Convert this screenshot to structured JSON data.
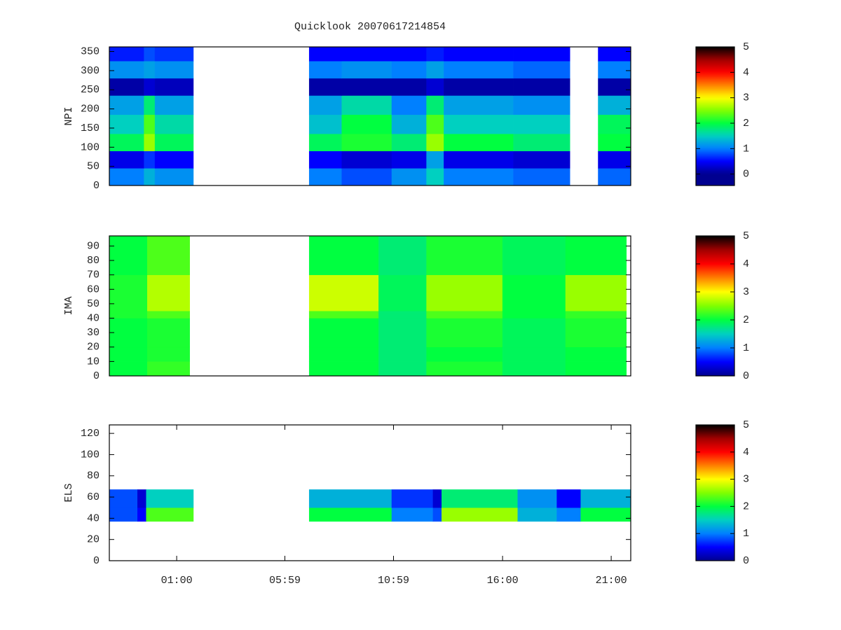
{
  "chart_data": [
    {
      "type": "heatmap",
      "title": "Quicklook 20070617214854",
      "ylabel": "NPI",
      "xlim": [
        -2.1,
        21.9
      ],
      "ylim": [
        0,
        362
      ],
      "yticks": [
        0,
        50,
        100,
        150,
        200,
        250,
        300,
        350
      ],
      "x_edges": [
        -2.1,
        -0.5,
        0.0,
        1.77,
        7.1,
        8.6,
        10.9,
        12.5,
        13.3,
        16.5,
        19.1,
        20.4,
        21.9
      ],
      "y_edges": [
        0,
        45,
        90,
        135,
        185,
        235,
        280,
        325,
        362
      ],
      "z": [
        [
          1.0,
          1.3,
          1.1,
          null,
          1.0,
          0.8,
          1.1,
          1.5,
          1.0,
          0.9,
          null,
          0.9
        ],
        [
          0.4,
          0.7,
          0.5,
          null,
          0.5,
          0.3,
          0.4,
          1.2,
          0.4,
          0.3,
          null,
          0.4
        ],
        [
          1.9,
          2.6,
          1.9,
          null,
          1.9,
          2.1,
          1.8,
          2.6,
          2.0,
          1.8,
          null,
          2.0
        ],
        [
          1.5,
          2.3,
          1.6,
          null,
          1.4,
          2.0,
          1.3,
          2.3,
          1.5,
          1.5,
          null,
          1.9
        ],
        [
          1.2,
          1.8,
          1.2,
          null,
          1.2,
          1.6,
          1.0,
          1.8,
          1.2,
          1.1,
          null,
          1.3
        ],
        [
          0.1,
          0.3,
          0.2,
          null,
          0.1,
          0.1,
          0.1,
          0.3,
          0.1,
          0.1,
          null,
          0.1
        ],
        [
          1.1,
          1.2,
          1.1,
          null,
          1.0,
          1.1,
          1.0,
          1.2,
          1.0,
          0.9,
          null,
          1.0
        ],
        [
          0.6,
          0.8,
          0.7,
          null,
          0.5,
          0.5,
          0.5,
          0.6,
          0.5,
          0.5,
          null,
          0.5
        ]
      ],
      "clim": [
        -0.45,
        5
      ],
      "cticks": [
        0,
        1,
        2,
        3,
        4,
        5
      ],
      "colormap": [
        "#000090",
        "#0000ff",
        "#0080ff",
        "#00d0c0",
        "#00ff40",
        "#80ff00",
        "#ffff00",
        "#ff8000",
        "#ff0000",
        "#a00000",
        "#000000"
      ]
    },
    {
      "type": "heatmap",
      "ylabel": "IMA",
      "xlim": [
        -2.1,
        21.9
      ],
      "ylim": [
        0,
        97
      ],
      "yticks": [
        0,
        10,
        20,
        30,
        40,
        50,
        60,
        70,
        80,
        90
      ],
      "x_edges": [
        -2.1,
        -0.35,
        1.6,
        7.1,
        10.3,
        12.5,
        16.0,
        18.9,
        21.7
      ],
      "y_edges": [
        0,
        10,
        20,
        40,
        45,
        70,
        97
      ],
      "z": [
        [
          2.0,
          2.2,
          null,
          2.0,
          1.8,
          2.1,
          1.9,
          2.0
        ],
        [
          2.0,
          2.1,
          null,
          2.0,
          1.8,
          2.0,
          1.9,
          2.0
        ],
        [
          2.0,
          2.1,
          null,
          2.0,
          1.8,
          2.1,
          1.9,
          2.1
        ],
        [
          2.1,
          2.3,
          null,
          2.3,
          1.8,
          2.3,
          2.0,
          2.2
        ],
        [
          2.1,
          2.7,
          null,
          2.8,
          1.9,
          2.6,
          2.0,
          2.6
        ],
        [
          2.0,
          2.3,
          null,
          2.0,
          1.8,
          2.1,
          1.9,
          2.0
        ]
      ],
      "clim": [
        0,
        5
      ],
      "cticks": [
        0,
        1,
        2,
        3,
        4,
        5
      ],
      "colormap": [
        "#000090",
        "#0000ff",
        "#0080ff",
        "#00d0c0",
        "#00ff40",
        "#80ff00",
        "#ffff00",
        "#ff8000",
        "#ff0000",
        "#a00000",
        "#000000"
      ]
    },
    {
      "type": "heatmap",
      "ylabel": "ELS",
      "xlim": [
        -2.1,
        21.9
      ],
      "ylim": [
        0,
        128
      ],
      "yticks": [
        0,
        20,
        40,
        60,
        80,
        100,
        120
      ],
      "xticks": [
        {
          "value": 1,
          "label": "01:00"
        },
        {
          "value": 5.98,
          "label": "05:59"
        },
        {
          "value": 10.98,
          "label": "10:59"
        },
        {
          "value": 16,
          "label": "16:00"
        },
        {
          "value": 21,
          "label": "21:00"
        }
      ],
      "x_edges": [
        -2.1,
        -0.8,
        -0.4,
        1.77,
        7.1,
        10.9,
        12.8,
        13.2,
        16.7,
        18.5,
        19.6,
        21.9
      ],
      "y_edges": [
        37,
        50,
        67
      ],
      "z": [
        [
          0.8,
          0.5,
          2.3,
          null,
          2.0,
          1.0,
          0.8,
          2.6,
          1.3,
          1.0,
          2.0
        ],
        [
          0.8,
          0.3,
          1.5,
          null,
          1.3,
          0.7,
          0.3,
          1.8,
          1.1,
          0.5,
          1.3
        ]
      ],
      "clim": [
        0,
        5
      ],
      "cticks": [
        0,
        1,
        2,
        3,
        4,
        5
      ],
      "colormap": [
        "#000090",
        "#0000ff",
        "#0080ff",
        "#00d0c0",
        "#00ff40",
        "#80ff00",
        "#ffff00",
        "#ff8000",
        "#ff0000",
        "#a00000",
        "#000000"
      ]
    }
  ]
}
